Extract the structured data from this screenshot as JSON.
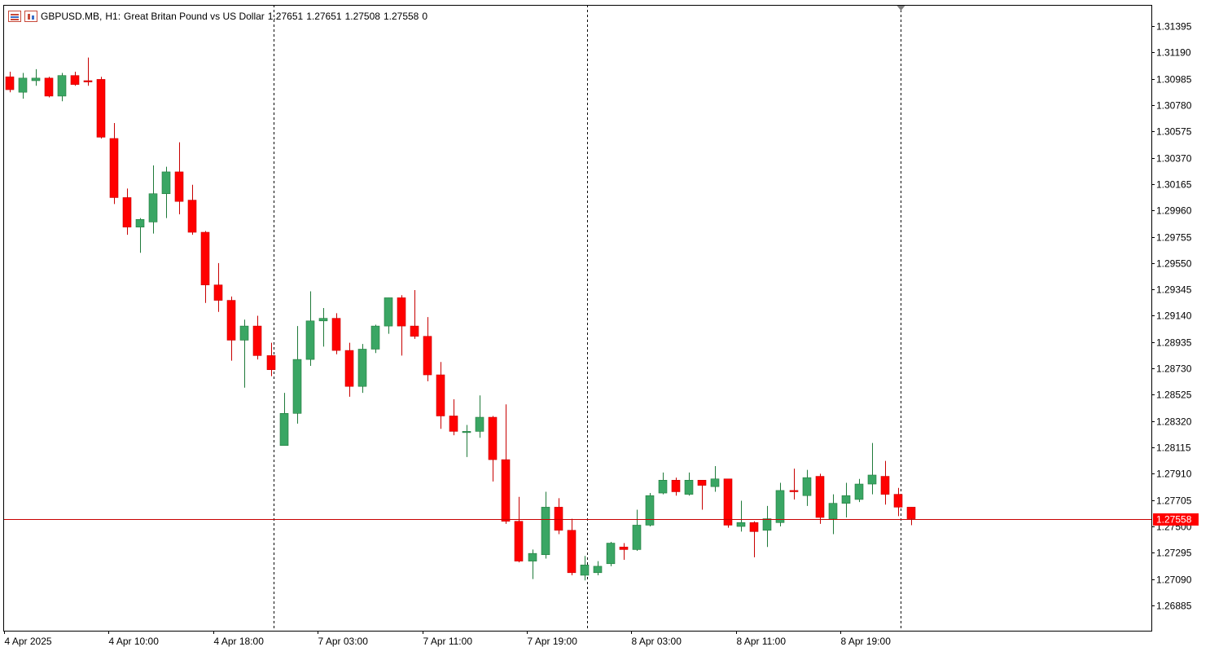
{
  "header": {
    "symbol": "GBPUSD.MB",
    "timeframe": "H1:",
    "description": "Great Britan Pound vs US Dollar",
    "open": "1.27651",
    "high": "1.27651",
    "low": "1.27508",
    "close": "1.27558",
    "volume": "0",
    "icons": [
      "trade-list-icon",
      "chart-window-icon"
    ]
  },
  "colors": {
    "bull": "#3aa664",
    "bear": "#ff0000",
    "wick_bull": "#1f7a3a",
    "wick_bear": "#c80000",
    "price_line": "#c80000",
    "price_label_bg": "#ff0000",
    "axis": "#000000"
  },
  "chart_data": {
    "type": "candlestick",
    "symbol": "GBPUSD.MB",
    "timeframe": "H1",
    "ylim": [
      1.2675,
      1.3145
    ],
    "y_ticks": [
      "1.31395",
      "1.31190",
      "1.30985",
      "1.30780",
      "1.30575",
      "1.30370",
      "1.30165",
      "1.29960",
      "1.29755",
      "1.29550",
      "1.29345",
      "1.29140",
      "1.28935",
      "1.28730",
      "1.28525",
      "1.28320",
      "1.28115",
      "1.27910",
      "1.27705",
      "1.27500",
      "1.27295",
      "1.27090",
      "1.26885"
    ],
    "x_ticks": [
      {
        "label": "4 Apr 2025",
        "bar": 0
      },
      {
        "label": "4 Apr 10:00",
        "bar": 8
      },
      {
        "label": "4 Apr 18:00",
        "bar": 16
      },
      {
        "label": "7 Apr 03:00",
        "bar": 24
      },
      {
        "label": "7 Apr 11:00",
        "bar": 32
      },
      {
        "label": "7 Apr 19:00",
        "bar": 40
      },
      {
        "label": "8 Apr 03:00",
        "bar": 48
      },
      {
        "label": "8 Apr 11:00",
        "bar": 56
      },
      {
        "label": "8 Apr 19:00",
        "bar": 64
      }
    ],
    "period_separators": [
      20.5,
      44.5,
      68.5
    ],
    "current_price": "1.27558",
    "grid": false,
    "ohlc": [
      [
        1.31,
        1.3104,
        1.3088,
        1.309
      ],
      [
        1.3088,
        1.3103,
        1.3083,
        1.3099
      ],
      [
        1.3097,
        1.3106,
        1.3093,
        1.3099
      ],
      [
        1.3099,
        1.31,
        1.3084,
        1.3085
      ],
      [
        1.3085,
        1.3103,
        1.3081,
        1.3101
      ],
      [
        1.3101,
        1.3104,
        1.3093,
        1.3094
      ],
      [
        1.3097,
        1.3115,
        1.3093,
        1.3096
      ],
      [
        1.3098,
        1.31,
        1.3052,
        1.3053
      ],
      [
        1.3052,
        1.3064,
        1.3001,
        1.3006
      ],
      [
        1.3006,
        1.3013,
        1.2977,
        1.2983
      ],
      [
        1.2983,
        1.299,
        1.2963,
        1.2989
      ],
      [
        1.2987,
        1.3031,
        1.2978,
        1.3009
      ],
      [
        1.3009,
        1.303,
        1.299,
        1.3026
      ],
      [
        1.3026,
        1.3049,
        1.2993,
        1.3003
      ],
      [
        1.3004,
        1.3016,
        1.2977,
        1.2979
      ],
      [
        1.2979,
        1.298,
        1.2924,
        1.2938
      ],
      [
        1.2938,
        1.2955,
        1.2917,
        1.2926
      ],
      [
        1.2926,
        1.2929,
        1.2879,
        1.2895
      ],
      [
        1.2895,
        1.2911,
        1.2858,
        1.2906
      ],
      [
        1.2906,
        1.2914,
        1.288,
        1.2883
      ],
      [
        1.2883,
        1.2893,
        1.2867,
        1.2872
      ],
      [
        1.2813,
        1.2854,
        1.2813,
        1.2838
      ],
      [
        1.2838,
        1.2906,
        1.283,
        1.288
      ],
      [
        1.288,
        1.2933,
        1.2875,
        1.291
      ],
      [
        1.291,
        1.292,
        1.289,
        1.2912
      ],
      [
        1.2912,
        1.2916,
        1.2884,
        1.2887
      ],
      [
        1.2887,
        1.2893,
        1.2851,
        1.2859
      ],
      [
        1.2859,
        1.2892,
        1.2854,
        1.2888
      ],
      [
        1.2888,
        1.2907,
        1.2885,
        1.2906
      ],
      [
        1.2906,
        1.2928,
        1.29,
        1.2928
      ],
      [
        1.2928,
        1.293,
        1.2883,
        1.2906
      ],
      [
        1.2906,
        1.2934,
        1.2896,
        1.2898
      ],
      [
        1.2898,
        1.2913,
        1.2863,
        1.2868
      ],
      [
        1.2868,
        1.2878,
        1.2826,
        1.2836
      ],
      [
        1.2836,
        1.2849,
        1.2821,
        1.2824
      ],
      [
        1.2824,
        1.2829,
        1.2804,
        1.2824
      ],
      [
        1.2824,
        1.2852,
        1.2819,
        1.2835
      ],
      [
        1.2835,
        1.2836,
        1.2785,
        1.2802
      ],
      [
        1.2802,
        1.2845,
        1.2752,
        1.2754
      ],
      [
        1.2754,
        1.2773,
        1.2722,
        1.2723
      ],
      [
        1.2723,
        1.2732,
        1.2709,
        1.2729
      ],
      [
        1.2728,
        1.2777,
        1.2725,
        1.2765
      ],
      [
        1.2765,
        1.2772,
        1.2744,
        1.2747
      ],
      [
        1.2747,
        1.2756,
        1.2712,
        1.2714
      ],
      [
        1.2712,
        1.2727,
        1.2708,
        1.272
      ],
      [
        1.2714,
        1.2723,
        1.2712,
        1.2719
      ],
      [
        1.2721,
        1.2738,
        1.2719,
        1.2737
      ],
      [
        1.2734,
        1.2737,
        1.2724,
        1.2732
      ],
      [
        1.2732,
        1.2763,
        1.2731,
        1.2751
      ],
      [
        1.2751,
        1.2776,
        1.275,
        1.2774
      ],
      [
        1.2776,
        1.2792,
        1.2775,
        1.2786
      ],
      [
        1.2786,
        1.2788,
        1.2774,
        1.2777
      ],
      [
        1.2775,
        1.2792,
        1.2774,
        1.2786
      ],
      [
        1.2786,
        1.2786,
        1.2763,
        1.2782
      ],
      [
        1.2781,
        1.2797,
        1.2777,
        1.2787
      ],
      [
        1.2787,
        1.2787,
        1.2749,
        1.2751
      ],
      [
        1.275,
        1.277,
        1.2746,
        1.2753
      ],
      [
        1.2753,
        1.2754,
        1.2726,
        1.2746
      ],
      [
        1.2747,
        1.2766,
        1.2734,
        1.2756
      ],
      [
        1.2753,
        1.2784,
        1.275,
        1.2778
      ],
      [
        1.2778,
        1.2795,
        1.2771,
        1.2777
      ],
      [
        1.2774,
        1.2794,
        1.2766,
        1.2788
      ],
      [
        1.2789,
        1.2791,
        1.2752,
        1.2757
      ],
      [
        1.2756,
        1.2775,
        1.2744,
        1.2768
      ],
      [
        1.2768,
        1.2784,
        1.2757,
        1.2774
      ],
      [
        1.2771,
        1.2787,
        1.2769,
        1.2783
      ],
      [
        1.2783,
        1.2815,
        1.2775,
        1.279
      ],
      [
        1.2789,
        1.2801,
        1.2767,
        1.2775
      ],
      [
        1.2775,
        1.278,
        1.2758,
        1.2765
      ],
      [
        1.2765,
        1.2765,
        1.2751,
        1.2756
      ]
    ]
  }
}
